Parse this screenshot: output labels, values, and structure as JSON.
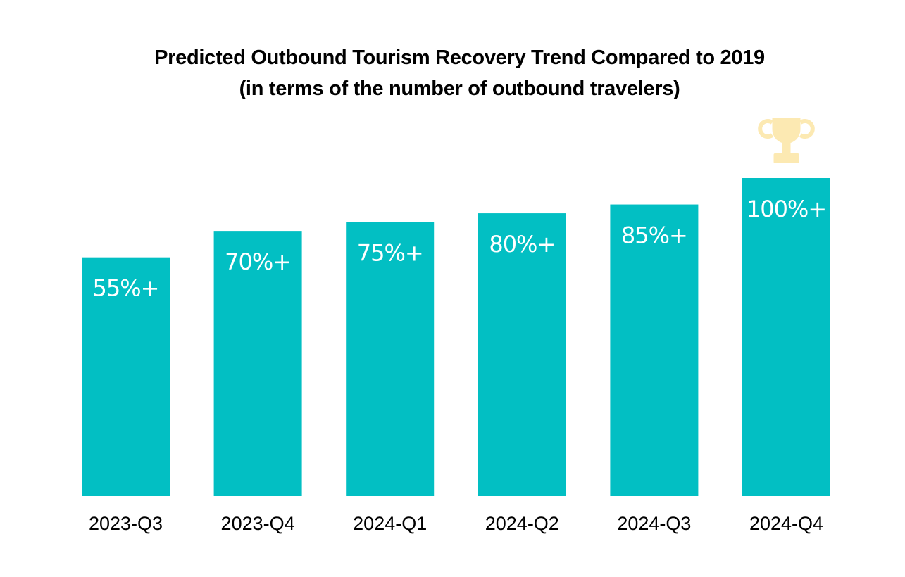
{
  "chart_data": {
    "type": "bar",
    "title": "Predicted Outbound Tourism Recovery Trend Compared to 2019",
    "subtitle": "(in terms of the number of outbound travelers)",
    "categories": [
      "2023-Q3",
      "2023-Q4",
      "2024-Q1",
      "2024-Q2",
      "2024-Q3",
      "2024-Q4"
    ],
    "values": [
      55,
      70,
      75,
      80,
      85,
      100
    ],
    "data_labels": [
      "55%+",
      "70%+",
      "75%+",
      "80%+",
      "85%+",
      "100%+"
    ],
    "ylim": [
      0,
      100
    ],
    "grid": false,
    "legend": "none",
    "bar_color": "#02BFC3",
    "icon": "trophy-icon",
    "icon_color": "#FCE9B2"
  }
}
